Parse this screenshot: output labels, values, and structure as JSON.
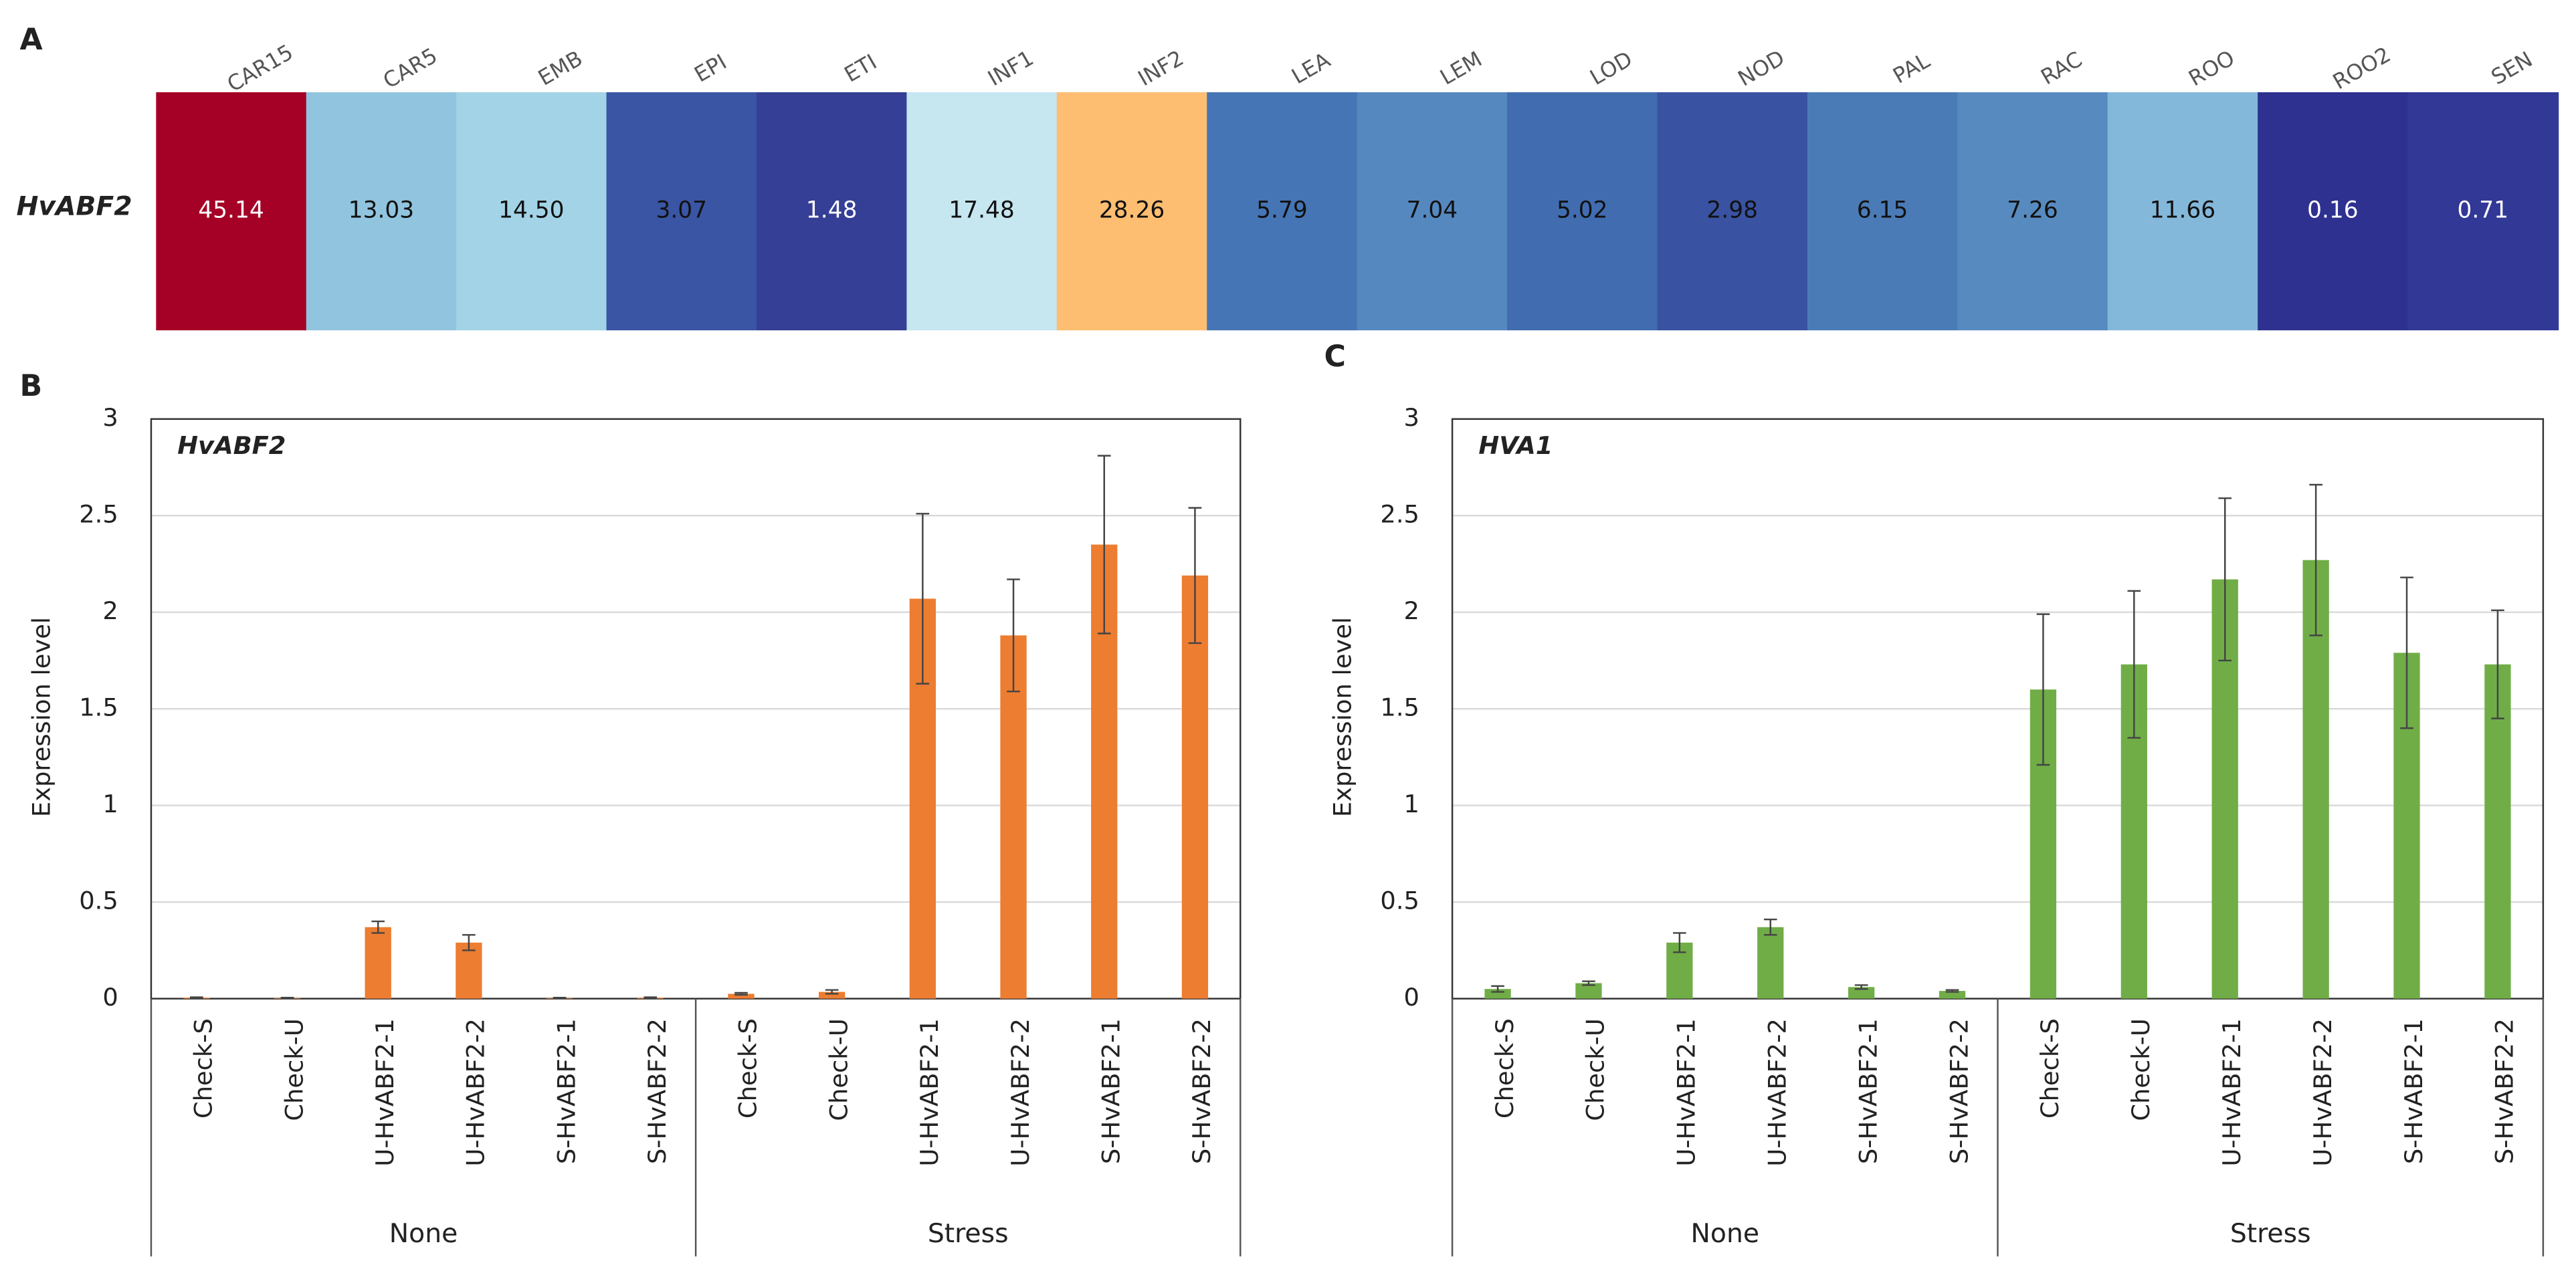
{
  "chart_data": [
    {
      "type": "heatmap",
      "panel": "A",
      "row_label": "HvABF2",
      "categories": [
        "CAR15",
        "CAR5",
        "EMB",
        "EPI",
        "ETI",
        "INF1",
        "INF2",
        "LEA",
        "LEM",
        "LOD",
        "NOD",
        "PAL",
        "RAC",
        "ROO",
        "ROO2",
        "SEN"
      ],
      "values": [
        45.14,
        13.03,
        14.5,
        3.07,
        1.48,
        17.48,
        28.26,
        5.79,
        7.04,
        5.02,
        2.98,
        6.15,
        7.26,
        11.66,
        0.16,
        0.71
      ],
      "value_labels": [
        "45.14",
        "13.03",
        "14.50",
        "3.07",
        "1.48",
        "17.48",
        "28.26",
        "5.79",
        "7.04",
        "5.02",
        "2.98",
        "6.15",
        "7.26",
        "11.66",
        "0.16",
        "0.71"
      ],
      "colors": [
        "#a50026",
        "#91c4de",
        "#a3d3e6",
        "#3a55a4",
        "#353f96",
        "#c6e6f0",
        "#fdbe72",
        "#4575b4",
        "#5688c0",
        "#416db0",
        "#3a52a2",
        "#4a7bb7",
        "#578bc0",
        "#84b8da",
        "#2e3190",
        "#323896"
      ]
    },
    {
      "type": "bar",
      "panel": "B",
      "title": "HvABF2",
      "y_label": "Expression level",
      "color": "#ed7d31",
      "ylim": [
        0,
        3
      ],
      "yticks": [
        0,
        0.5,
        1,
        1.5,
        2,
        2.5,
        3
      ],
      "grid": true,
      "groups": [
        {
          "label": "None",
          "categories": [
            "Check-S",
            "Check-U",
            "U-HvABF2-1",
            "U-HvABF2-2",
            "S-HvABF2-1",
            "S-HvABF2-2"
          ],
          "values": [
            0.005,
            0.003,
            0.37,
            0.29,
            0.003,
            0.005
          ],
          "errors": [
            0.002,
            0.002,
            0.03,
            0.04,
            0.002,
            0.002
          ]
        },
        {
          "label": "Stress",
          "categories": [
            "Check-S",
            "Check-U",
            "U-HvABF2-1",
            "U-HvABF2-2",
            "S-HvABF2-1",
            "S-HvABF2-2"
          ],
          "values": [
            0.025,
            0.035,
            2.07,
            1.88,
            2.35,
            2.19
          ],
          "errors": [
            0.005,
            0.01,
            0.44,
            0.29,
            0.46,
            0.35
          ]
        }
      ]
    },
    {
      "type": "bar",
      "panel": "C",
      "title": "HVA1",
      "y_label": "Expression level",
      "color": "#70ad47",
      "ylim": [
        0,
        3
      ],
      "yticks": [
        0,
        0.5,
        1,
        1.5,
        2,
        2.5,
        3
      ],
      "grid": true,
      "groups": [
        {
          "label": "None",
          "categories": [
            "Check-S",
            "Check-U",
            "U-HvABF2-1",
            "U-HvABF2-2",
            "S-HvABF2-1",
            "S-HvABF2-2"
          ],
          "values": [
            0.05,
            0.08,
            0.29,
            0.37,
            0.06,
            0.04
          ],
          "errors": [
            0.015,
            0.01,
            0.05,
            0.04,
            0.01,
            0.005
          ]
        },
        {
          "label": "Stress",
          "categories": [
            "Check-S",
            "Check-U",
            "U-HvABF2-1",
            "U-HvABF2-2",
            "S-HvABF2-1",
            "S-HvABF2-2"
          ],
          "values": [
            1.6,
            1.73,
            2.17,
            2.27,
            1.79,
            1.73
          ],
          "errors": [
            0.39,
            0.38,
            0.42,
            0.39,
            0.39,
            0.28
          ]
        }
      ]
    }
  ]
}
